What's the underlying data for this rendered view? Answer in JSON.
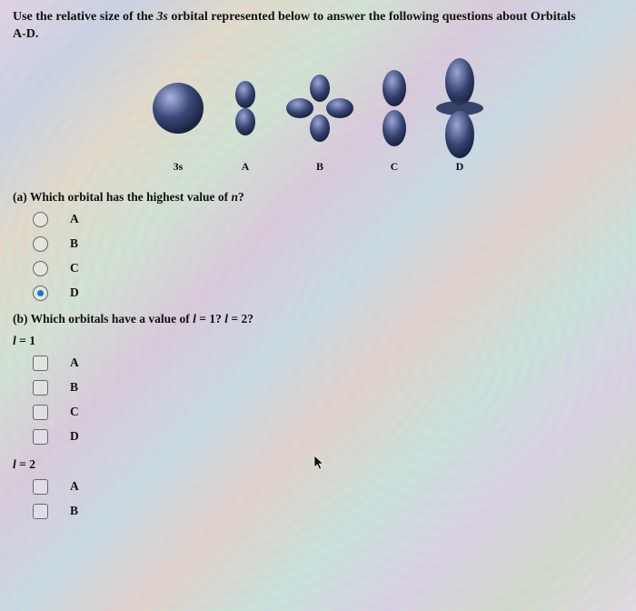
{
  "header": {
    "line1_pre": "Use the relative size of the ",
    "line1_italic": "3s",
    "line1_post": " orbital represented below to answer the following questions about Orbitals",
    "line2": "A-D."
  },
  "orbitals": {
    "fill_dark": "#2a3560",
    "fill_mid": "#3c4a7a",
    "highlight": "#aab6e0",
    "labels": {
      "s3": "3s",
      "A": "A",
      "B": "B",
      "C": "C",
      "D": "D"
    }
  },
  "question_a": {
    "text_pre": "(a) Which orbital has the highest value of ",
    "text_italic": "n",
    "text_post": "?",
    "options": [
      "A",
      "B",
      "C",
      "D"
    ],
    "selected": "D"
  },
  "question_b": {
    "text_pre": "(b) Which orbitals have a value of ",
    "text_italic1": "l",
    "text_mid1": " = 1? ",
    "text_italic2": "l",
    "text_mid2": " = 2?",
    "group1_label_italic": "l",
    "group1_label_post": " = 1",
    "group1_options": [
      "A",
      "B",
      "C",
      "D"
    ],
    "group2_label_italic": "l",
    "group2_label_post": " = 2",
    "group2_options": [
      "A",
      "B"
    ]
  },
  "colors": {
    "text": "#111111",
    "radio_border": "#6a6a6a",
    "radio_selected": "#1a7ad1"
  }
}
